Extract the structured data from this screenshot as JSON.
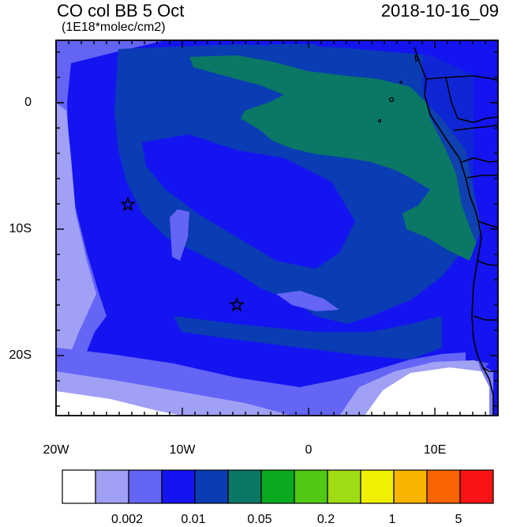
{
  "header": {
    "title": "CO col BB 5 Oct",
    "subtitle": "(1E18*molec/cm2)",
    "timestamp": "2018-10-16_09"
  },
  "axes": {
    "y_labels": [
      "0",
      "10S",
      "20S"
    ],
    "x_labels": [
      "20W",
      "10W",
      "0",
      "10E"
    ]
  },
  "colorbar": {
    "labels": [
      "0.002",
      "0.01",
      "0.05",
      "0.2",
      "1",
      "5"
    ],
    "colors": [
      "#ffffff",
      "#a0a0f5",
      "#6464f5",
      "#1414f0",
      "#0a3cb4",
      "#0a7864",
      "#0aaa1e",
      "#50c814",
      "#a0dc14",
      "#f0f000",
      "#f8b400",
      "#f86400",
      "#f81414"
    ]
  },
  "markers": [
    "star",
    "star"
  ]
}
